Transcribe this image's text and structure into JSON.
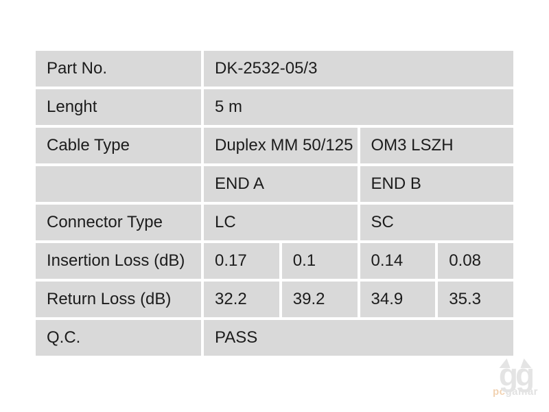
{
  "chart_data": {
    "type": "table",
    "rows": [
      {
        "label": "Part No.",
        "cells": [
          {
            "text": "DK-2532-05/3",
            "span": 4
          }
        ]
      },
      {
        "label": "Lenght",
        "cells": [
          {
            "text": "5 m",
            "span": 4
          }
        ]
      },
      {
        "label": "Cable Type",
        "cells": [
          {
            "text": "Duplex MM 50/125",
            "span": 2
          },
          {
            "text": "OM3 LSZH",
            "span": 2
          }
        ]
      },
      {
        "label": "",
        "cells": [
          {
            "text": "END A",
            "span": 2
          },
          {
            "text": "END B",
            "span": 2
          }
        ]
      },
      {
        "label": "Connector Type",
        "cells": [
          {
            "text": "LC",
            "span": 2
          },
          {
            "text": "SC",
            "span": 2
          }
        ]
      },
      {
        "label": "Insertion Loss (dB)",
        "cells": [
          {
            "text": "0.17",
            "span": 1
          },
          {
            "text": "0.1",
            "span": 1
          },
          {
            "text": "0.14",
            "span": 1
          },
          {
            "text": "0.08",
            "span": 1
          }
        ]
      },
      {
        "label": "Return Loss (dB)",
        "cells": [
          {
            "text": "32.2",
            "span": 1
          },
          {
            "text": "39.2",
            "span": 1
          },
          {
            "text": "34.9",
            "span": 1
          },
          {
            "text": "35.3",
            "span": 1
          }
        ]
      },
      {
        "label": "Q.C.",
        "cells": [
          {
            "text": "PASS",
            "span": 4
          }
        ]
      }
    ]
  },
  "watermark": {
    "owl_text": "gg",
    "brand_pc": "pc",
    "brand_rest": "gamar"
  },
  "colors": {
    "cell_bg": "#d9d9d9",
    "text": "#1c1c1c",
    "watermark_gray": "#e4e4e4",
    "watermark_orange": "#f1d2b2"
  }
}
